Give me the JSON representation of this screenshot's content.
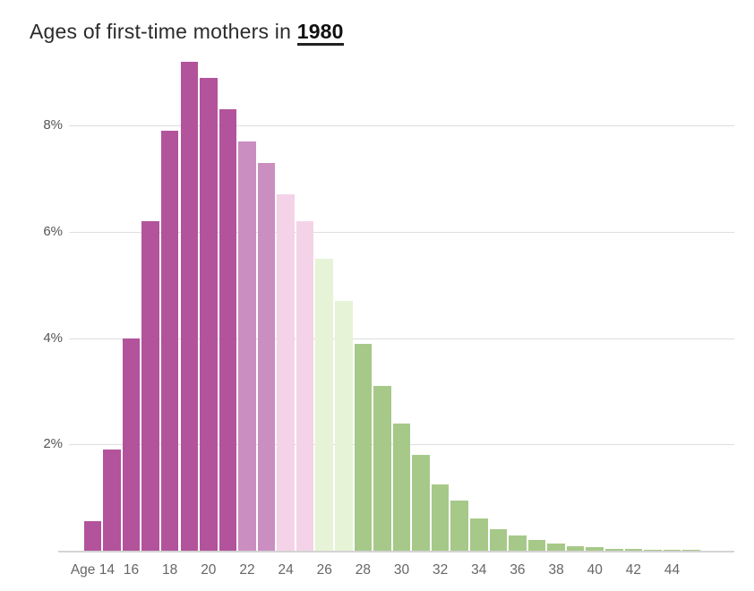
{
  "title": {
    "prefix": "Ages of first-time mothers in ",
    "year": "1980"
  },
  "chart_data": {
    "type": "bar",
    "title": "Ages of first-time mothers in 1980",
    "xlabel": "Age",
    "ylabel": "",
    "x": [
      14,
      15,
      16,
      17,
      18,
      19,
      20,
      21,
      22,
      23,
      24,
      25,
      26,
      27,
      28,
      29,
      30,
      31,
      32,
      33,
      34,
      35,
      36,
      37,
      38,
      39,
      40,
      41,
      42,
      43,
      44,
      45
    ],
    "values": [
      0.55,
      1.9,
      4.0,
      6.2,
      7.9,
      9.2,
      8.9,
      8.3,
      7.7,
      7.3,
      6.7,
      6.2,
      5.5,
      4.7,
      3.9,
      3.1,
      2.4,
      1.8,
      1.25,
      0.95,
      0.6,
      0.4,
      0.28,
      0.2,
      0.13,
      0.08,
      0.06,
      0.04,
      0.03,
      0.02,
      0.01,
      0.01
    ],
    "ylim": [
      0,
      9.7
    ],
    "grid": true,
    "y_ticks": [
      {
        "value": 2,
        "label": "2%"
      },
      {
        "value": 4,
        "label": "4%"
      },
      {
        "value": 6,
        "label": "6%"
      },
      {
        "value": 8,
        "label": "8%"
      }
    ],
    "x_ticks": [
      {
        "age": 14,
        "label": "Age 14"
      },
      {
        "age": 16,
        "label": "16"
      },
      {
        "age": 18,
        "label": "18"
      },
      {
        "age": 20,
        "label": "20"
      },
      {
        "age": 22,
        "label": "22"
      },
      {
        "age": 24,
        "label": "24"
      },
      {
        "age": 26,
        "label": "26"
      },
      {
        "age": 28,
        "label": "28"
      },
      {
        "age": 30,
        "label": "30"
      },
      {
        "age": 32,
        "label": "32"
      },
      {
        "age": 34,
        "label": "34"
      },
      {
        "age": 36,
        "label": "36"
      },
      {
        "age": 38,
        "label": "38"
      },
      {
        "age": 40,
        "label": "40"
      },
      {
        "age": 42,
        "label": "42"
      },
      {
        "age": 44,
        "label": "44"
      }
    ],
    "color_ranges": [
      {
        "from": 14,
        "to": 21,
        "color": "#b2539c"
      },
      {
        "from": 22,
        "to": 23,
        "color": "#cb8ec0"
      },
      {
        "from": 24,
        "to": 25,
        "color": "#f4d3e8"
      },
      {
        "from": 26,
        "to": 27,
        "color": "#e6f3d6"
      },
      {
        "from": 28,
        "to": 45,
        "color": "#a6c989"
      }
    ],
    "legend": null
  }
}
